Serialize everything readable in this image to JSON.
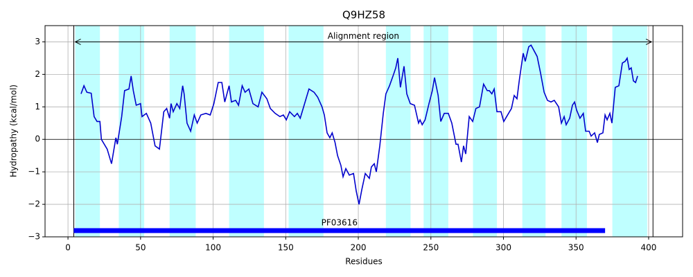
{
  "chart_data": {
    "type": "line",
    "title": "Q9HZ58",
    "x_label": "Residues",
    "y_label": "Hydropathy (kcal/mol)",
    "xlim": [
      -15.8,
      423.4
    ],
    "ylim": [
      -3,
      3.5
    ],
    "xticks": [
      0,
      50,
      100,
      150,
      200,
      250,
      300,
      350,
      400
    ],
    "yticks": [
      {
        "value": -3,
        "label": "−3"
      },
      {
        "value": -2,
        "label": "−2"
      },
      {
        "value": -1,
        "label": "−1"
      },
      0,
      1,
      2,
      3
    ],
    "grid": true,
    "highlight_color": "#bfffff",
    "highlight_regions": [
      [
        5,
        22
      ],
      [
        35,
        52.5
      ],
      [
        70,
        88
      ],
      [
        111,
        135
      ],
      [
        152,
        176
      ],
      [
        219,
        236
      ],
      [
        245,
        262
      ],
      [
        279,
        295.5
      ],
      [
        313,
        329
      ],
      [
        340,
        357.5
      ],
      [
        375,
        399
      ]
    ],
    "boundaries": [
      4,
      403
    ],
    "alignment_region": {
      "label": "Alignment region",
      "start": 5,
      "end": 402,
      "y": 3
    },
    "domain": {
      "name": "PF03616",
      "start": 4,
      "end": 370,
      "color": "#0000ff"
    },
    "series": [
      {
        "name": "Hydropathy",
        "color": "#0000cc",
        "x": [
          9,
          11,
          13,
          16,
          18,
          20,
          22,
          23,
          27,
          30,
          33,
          34,
          37,
          39,
          42,
          43.5,
          45,
          47,
          50,
          51,
          54,
          57,
          60,
          63,
          66,
          68,
          70,
          71,
          72.5,
          75,
          77,
          79,
          80,
          82,
          84.5,
          87,
          89,
          91.5,
          95,
          98,
          100.5,
          103.5,
          106,
          108,
          111,
          112.6,
          115.5,
          117.5,
          120,
          122,
          124.6,
          127.4,
          131,
          133.6,
          137,
          139.4,
          142.7,
          146,
          148.4,
          150.4,
          152.7,
          156,
          158,
          160,
          163,
          166,
          169.5,
          172,
          175,
          176.6,
          178.5,
          180.4,
          182,
          184,
          185.7,
          188,
          189.5,
          191.4,
          193.8,
          196.7,
          198.6,
          200.5,
          202.4,
          204.8,
          207.6,
          209,
          211,
          212.4,
          214.8,
          217.2,
          219,
          221.5,
          224.3,
          225.8,
          227.2,
          229,
          231.5,
          233.4,
          235.8,
          238.7,
          241.5,
          242.5,
          244,
          246,
          248.7,
          251,
          252.5,
          255,
          256.8,
          259.2,
          262,
          264.4,
          267.3,
          268.7,
          271,
          272.5,
          274,
          276.4,
          278.8,
          281,
          283.5,
          286.3,
          288.8,
          290.2,
          292,
          293.6,
          295.5,
          298.3,
          300.2,
          303.5,
          305.5,
          307.4,
          309.3,
          311,
          313.6,
          315,
          317.4,
          319,
          320.8,
          323.2,
          325.5,
          328,
          330.3,
          332.7,
          335,
          338,
          339.9,
          341.8,
          343.2,
          345.6,
          347.5,
          349,
          350.4,
          352.7,
          355,
          356.6,
          359,
          360.4,
          362.8,
          364.7,
          366,
          368.5,
          370,
          371.4,
          373.3,
          374.7,
          377,
          379.5,
          381.9,
          383.8,
          385.2,
          386.6,
          388,
          389.5,
          391,
          392.4
        ],
        "values": [
          1.4,
          1.65,
          1.45,
          1.42,
          0.7,
          0.55,
          0.55,
          0.0,
          -0.3,
          -0.75,
          0.05,
          -0.15,
          0.7,
          1.5,
          1.55,
          1.95,
          1.5,
          1.05,
          1.1,
          0.7,
          0.8,
          0.5,
          -0.2,
          -0.3,
          0.85,
          0.95,
          0.65,
          1.1,
          0.85,
          1.1,
          0.95,
          1.65,
          1.4,
          0.5,
          0.25,
          0.75,
          0.5,
          0.75,
          0.8,
          0.75,
          1.1,
          1.75,
          1.75,
          1.15,
          1.65,
          1.15,
          1.2,
          1.05,
          1.65,
          1.45,
          1.55,
          1.1,
          1.0,
          1.45,
          1.25,
          0.95,
          0.8,
          0.7,
          0.75,
          0.6,
          0.85,
          0.7,
          0.8,
          0.65,
          1.1,
          1.55,
          1.45,
          1.3,
          1.0,
          0.75,
          0.2,
          0.05,
          0.2,
          -0.1,
          -0.5,
          -0.8,
          -1.15,
          -0.9,
          -1.1,
          -1.05,
          -1.6,
          -2.0,
          -1.55,
          -1.05,
          -1.2,
          -0.85,
          -0.75,
          -1.0,
          -0.2,
          0.8,
          1.4,
          1.65,
          2.0,
          2.2,
          2.5,
          1.6,
          2.25,
          1.4,
          1.1,
          1.05,
          0.5,
          0.6,
          0.45,
          0.6,
          1.1,
          1.5,
          1.9,
          1.35,
          0.55,
          0.8,
          0.8,
          0.5,
          -0.15,
          -0.15,
          -0.7,
          -0.2,
          -0.45,
          0.7,
          0.55,
          0.95,
          1.0,
          1.7,
          1.5,
          1.5,
          1.4,
          1.55,
          0.85,
          0.85,
          0.55,
          0.8,
          0.95,
          1.35,
          1.25,
          1.85,
          2.65,
          2.4,
          2.85,
          2.9,
          2.75,
          2.55,
          2.05,
          1.45,
          1.2,
          1.15,
          1.2,
          1.0,
          0.5,
          0.7,
          0.45,
          0.65,
          1.05,
          1.15,
          0.9,
          0.65,
          0.8,
          0.25,
          0.25,
          0.1,
          0.2,
          -0.1,
          0.15,
          0.2,
          0.75,
          0.6,
          0.8,
          0.5,
          1.6,
          1.65,
          2.35,
          2.4,
          2.5,
          2.15,
          2.2,
          1.8,
          1.75,
          1.95
        ]
      }
    ]
  }
}
